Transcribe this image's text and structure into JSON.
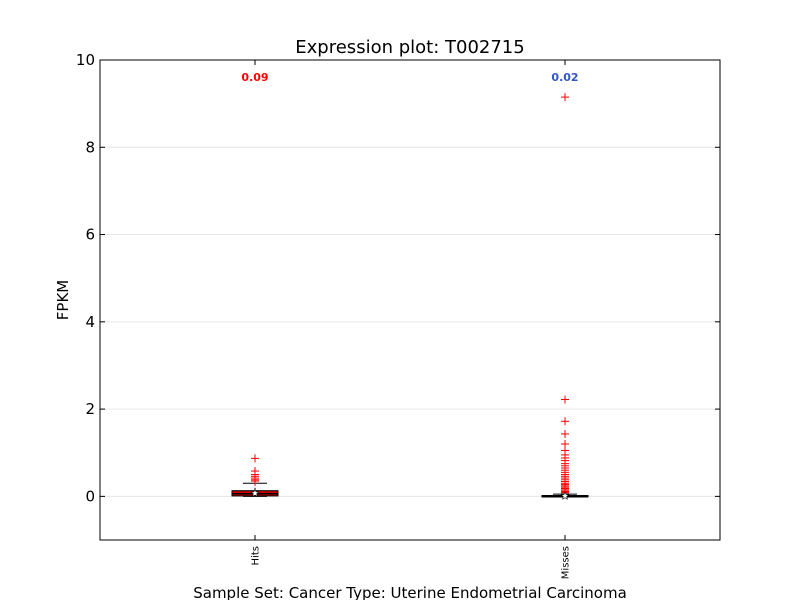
{
  "chart_data": {
    "type": "box",
    "title": "Expression plot: T002715",
    "xlabel": "Sample Set: Cancer Type: Uterine Endometrial Carcinoma",
    "ylabel": "FPKM",
    "ylim": [
      -1,
      10
    ],
    "yticks": [
      0,
      2,
      4,
      6,
      8,
      10
    ],
    "grid": "horizontal",
    "categories": [
      "Hits",
      "Misses"
    ],
    "series": [
      {
        "category": "Hits",
        "annotation": "0.09",
        "annotation_color": "#ff0000",
        "box_color": "#cc0000",
        "whisker_low": 0.0,
        "q1": 0.01,
        "median": 0.06,
        "mean": 0.07,
        "q3": 0.13,
        "whisker_high": 0.3,
        "outliers": [
          0.87,
          0.58,
          0.5,
          0.46,
          0.42,
          0.38,
          0.35
        ]
      },
      {
        "category": "Misses",
        "annotation": "0.02",
        "annotation_color": "#3355cc",
        "box_color": "#cc0000",
        "whisker_low": 0.0,
        "q1": 0.0,
        "median": 0.01,
        "mean": 0.01,
        "q3": 0.02,
        "whisker_high": 0.05,
        "outliers": [
          9.15,
          2.22,
          1.72,
          1.43,
          1.2,
          1.05,
          0.95,
          0.88,
          0.82,
          0.75,
          0.7,
          0.65,
          0.6,
          0.55,
          0.5,
          0.46,
          0.42,
          0.38,
          0.34,
          0.3,
          0.27,
          0.24,
          0.21,
          0.18,
          0.15,
          0.12,
          0.1,
          0.08
        ]
      }
    ]
  }
}
